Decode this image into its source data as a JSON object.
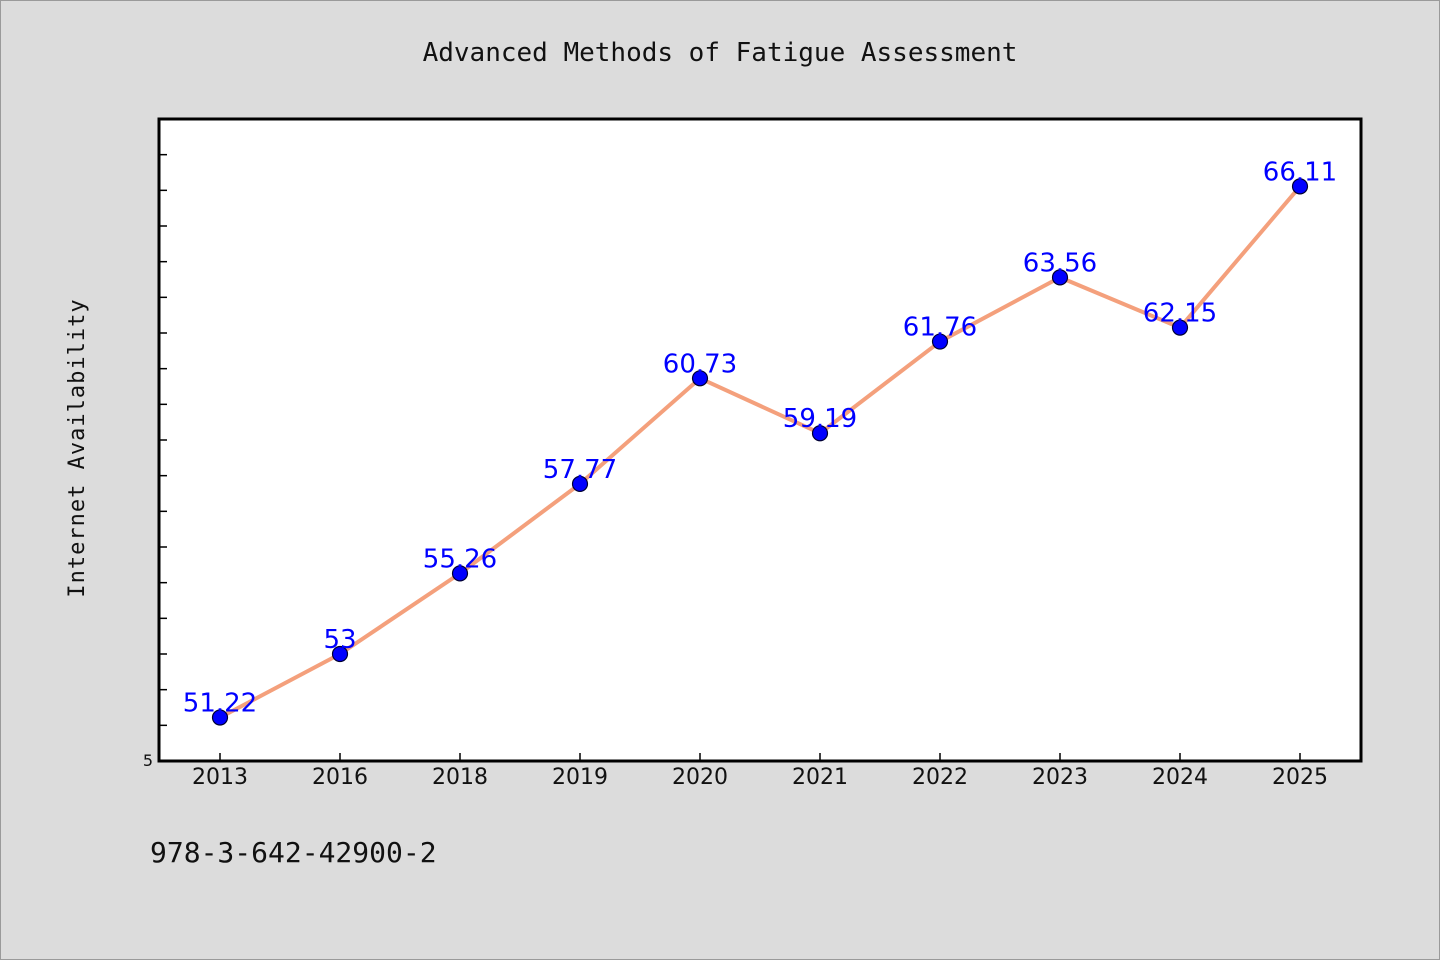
{
  "chart_data": {
    "type": "line",
    "title": "Advanced Methods of Fatigue Assessment",
    "xlabel": "",
    "ylabel": "Internet Availability",
    "categories": [
      "2013",
      "2016",
      "2018",
      "2019",
      "2020",
      "2021",
      "2022",
      "2023",
      "2024",
      "2025"
    ],
    "series": [
      {
        "values": [
          51.22,
          53,
          55.26,
          57.77,
          60.73,
          59.19,
          61.76,
          63.56,
          62.15,
          66.11
        ]
      }
    ],
    "data_labels": [
      "51.22",
      "53",
      "55.26",
      "57.77",
      "60.73",
      "59.19",
      "61.76",
      "63.56",
      "62.15",
      "66.11"
    ],
    "ylim": [
      50,
      68
    ],
    "yticks_labeled": [
      "5"
    ],
    "grid": false,
    "line_color": "#f4a07c",
    "marker_color": "#0000ff",
    "label_color": "#0000ff"
  },
  "footer": {
    "isbn": "978-3-642-42900-2"
  }
}
